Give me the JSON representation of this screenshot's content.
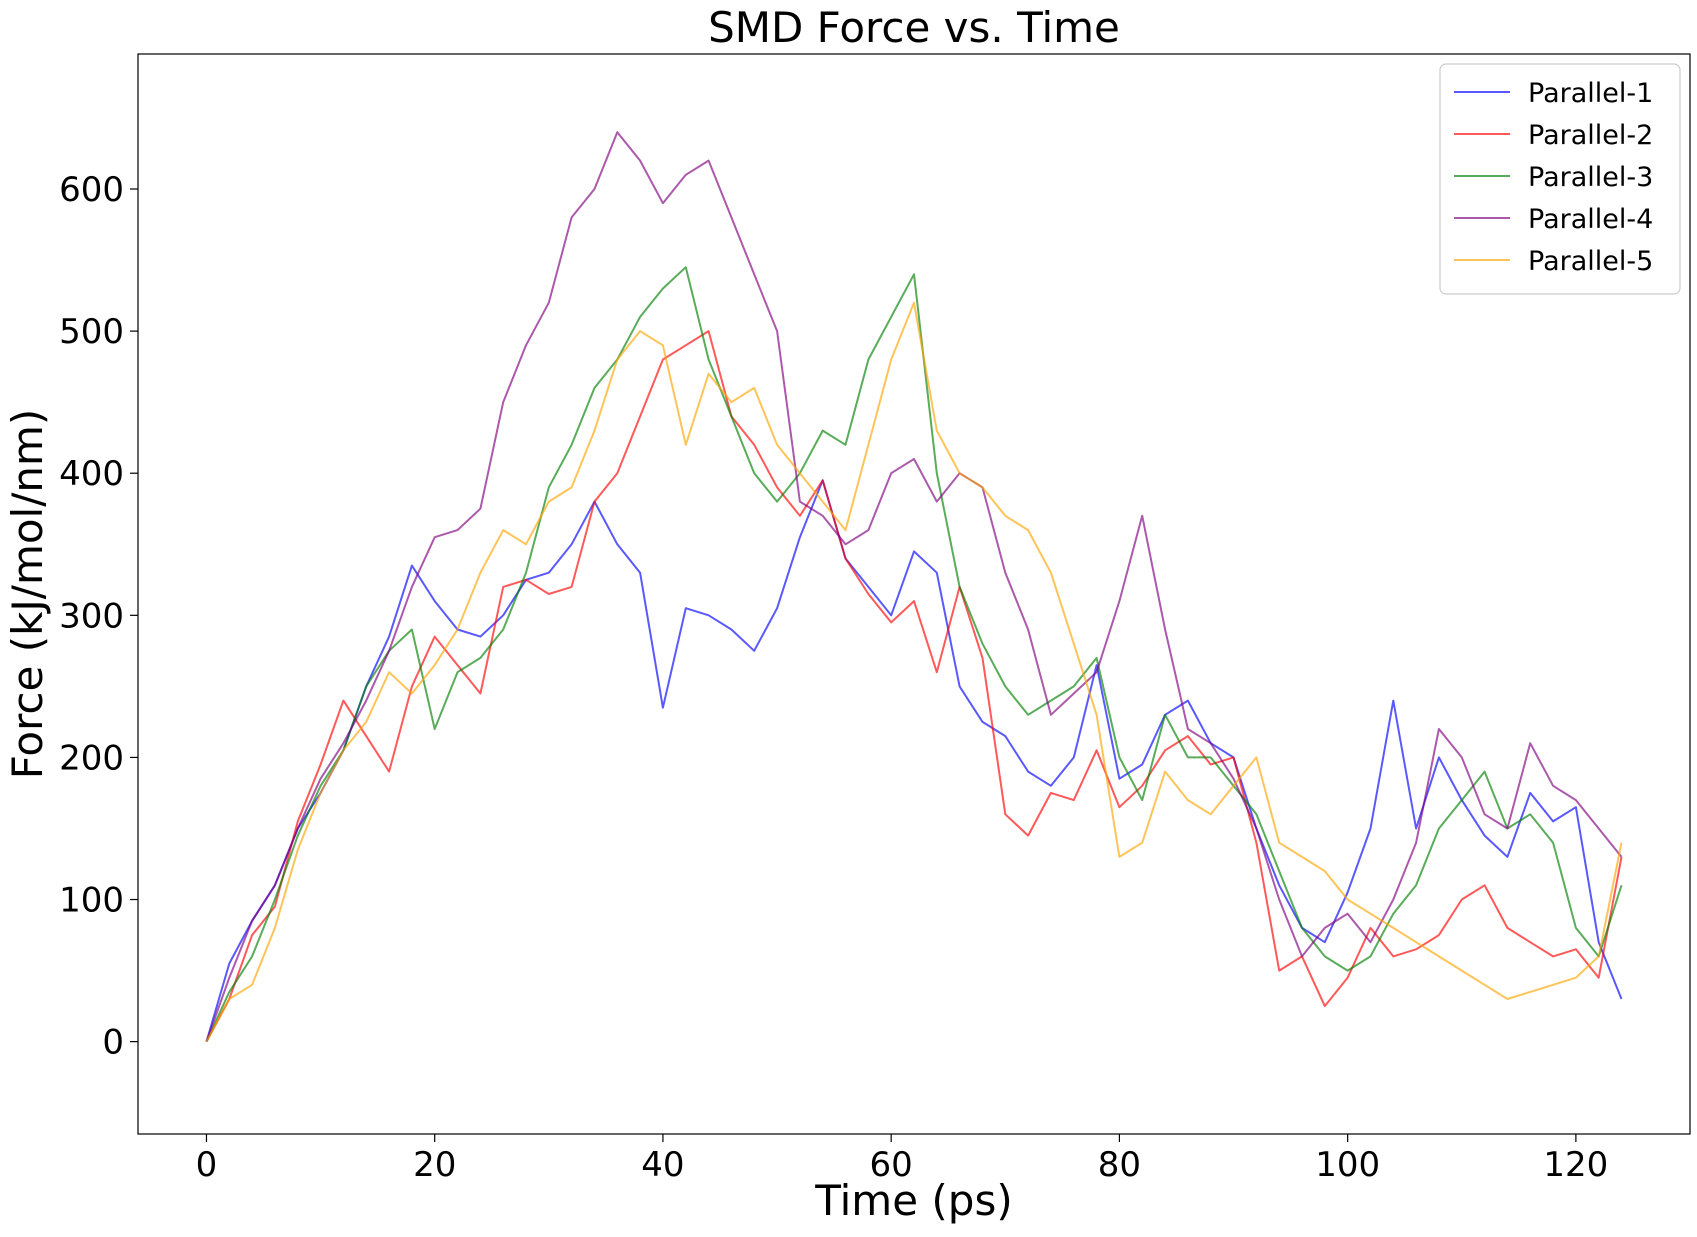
{
  "chart_data": {
    "type": "line",
    "title": "SMD Force vs. Time",
    "xlabel": "Time (ps)",
    "ylabel": "Force (kJ/mol/nm)",
    "xlim": [
      -6,
      130
    ],
    "ylim": [
      -65,
      695
    ],
    "xticks": [
      0,
      20,
      40,
      60,
      80,
      100,
      120
    ],
    "yticks": [
      0,
      100,
      200,
      300,
      400,
      500,
      600
    ],
    "grid": false,
    "legend_position": "top-right",
    "series": [
      {
        "name": "Parallel-1",
        "color": "#0000ff",
        "x": [
          0,
          2,
          4,
          6,
          8,
          10,
          12,
          14,
          16,
          18,
          20,
          22,
          24,
          26,
          28,
          30,
          32,
          34,
          36,
          38,
          40,
          42,
          44,
          46,
          48,
          50,
          52,
          54,
          56,
          58,
          60,
          62,
          64,
          66,
          68,
          70,
          72,
          74,
          76,
          78,
          80,
          82,
          84,
          86,
          88,
          90,
          92,
          94,
          96,
          98,
          100,
          102,
          104,
          106,
          108,
          110,
          112,
          114,
          116,
          118,
          120,
          122,
          124
        ],
        "y": [
          0,
          55,
          85,
          110,
          150,
          175,
          205,
          250,
          285,
          335,
          310,
          290,
          285,
          300,
          325,
          330,
          350,
          380,
          350,
          330,
          235,
          305,
          300,
          290,
          275,
          305,
          355,
          395,
          340,
          320,
          300,
          345,
          330,
          250,
          225,
          215,
          190,
          180,
          200,
          265,
          185,
          195,
          230,
          240,
          210,
          200,
          150,
          110,
          80,
          70,
          105,
          150,
          240,
          150,
          200,
          170,
          145,
          130,
          175,
          155,
          165,
          70,
          30
        ]
      },
      {
        "name": "Parallel-2",
        "color": "#ff0000",
        "x": [
          0,
          2,
          4,
          6,
          8,
          10,
          12,
          14,
          16,
          18,
          20,
          22,
          24,
          26,
          28,
          30,
          32,
          34,
          36,
          38,
          40,
          42,
          44,
          46,
          48,
          50,
          52,
          54,
          56,
          58,
          60,
          62,
          64,
          66,
          68,
          70,
          72,
          74,
          76,
          78,
          80,
          82,
          84,
          86,
          88,
          90,
          92,
          94,
          96,
          98,
          100,
          102,
          104,
          106,
          108,
          110,
          112,
          114,
          116,
          118,
          120,
          122,
          124
        ],
        "y": [
          0,
          30,
          75,
          95,
          155,
          195,
          240,
          215,
          190,
          250,
          285,
          265,
          245,
          320,
          325,
          315,
          320,
          380,
          400,
          440,
          480,
          490,
          500,
          440,
          420,
          390,
          370,
          395,
          340,
          315,
          295,
          310,
          260,
          320,
          270,
          160,
          145,
          175,
          170,
          205,
          165,
          180,
          205,
          215,
          195,
          200,
          140,
          50,
          60,
          25,
          45,
          80,
          60,
          65,
          75,
          100,
          110,
          80,
          70,
          60,
          65,
          45,
          130
        ]
      },
      {
        "name": "Parallel-3",
        "color": "#008000",
        "x": [
          0,
          2,
          4,
          6,
          8,
          10,
          12,
          14,
          16,
          18,
          20,
          22,
          24,
          26,
          28,
          30,
          32,
          34,
          36,
          38,
          40,
          42,
          44,
          46,
          48,
          50,
          52,
          54,
          56,
          58,
          60,
          62,
          64,
          66,
          68,
          70,
          72,
          74,
          76,
          78,
          80,
          82,
          84,
          86,
          88,
          90,
          92,
          94,
          96,
          98,
          100,
          102,
          104,
          106,
          108,
          110,
          112,
          114,
          116,
          118,
          120,
          122,
          124
        ],
        "y": [
          0,
          35,
          60,
          100,
          145,
          180,
          205,
          250,
          275,
          290,
          220,
          260,
          270,
          290,
          330,
          390,
          420,
          460,
          480,
          510,
          530,
          545,
          480,
          440,
          400,
          380,
          400,
          430,
          420,
          480,
          510,
          540,
          400,
          320,
          280,
          250,
          230,
          240,
          250,
          270,
          200,
          170,
          230,
          200,
          200,
          180,
          160,
          120,
          80,
          60,
          50,
          60,
          90,
          110,
          150,
          170,
          190,
          150,
          160,
          140,
          80,
          60,
          110
        ]
      },
      {
        "name": "Parallel-4",
        "color": "#800080",
        "x": [
          0,
          2,
          4,
          6,
          8,
          10,
          12,
          14,
          16,
          18,
          20,
          22,
          24,
          26,
          28,
          30,
          32,
          34,
          36,
          38,
          40,
          42,
          44,
          46,
          48,
          50,
          52,
          54,
          56,
          58,
          60,
          62,
          64,
          66,
          68,
          70,
          72,
          74,
          76,
          78,
          80,
          82,
          84,
          86,
          88,
          90,
          92,
          94,
          96,
          98,
          100,
          102,
          104,
          106,
          108,
          110,
          112,
          114,
          116,
          118,
          120,
          122,
          124
        ],
        "y": [
          0,
          45,
          85,
          110,
          150,
          185,
          210,
          240,
          275,
          320,
          355,
          360,
          375,
          450,
          490,
          520,
          580,
          600,
          640,
          620,
          590,
          610,
          620,
          580,
          540,
          500,
          380,
          370,
          350,
          360,
          400,
          410,
          380,
          400,
          390,
          330,
          290,
          230,
          245,
          260,
          310,
          370,
          290,
          220,
          210,
          185,
          150,
          100,
          60,
          80,
          90,
          70,
          100,
          140,
          220,
          200,
          160,
          150,
          210,
          180,
          170,
          150,
          130
        ]
      },
      {
        "name": "Parallel-5",
        "color": "#ffa500",
        "x": [
          0,
          2,
          4,
          6,
          8,
          10,
          12,
          14,
          16,
          18,
          20,
          22,
          24,
          26,
          28,
          30,
          32,
          34,
          36,
          38,
          40,
          42,
          44,
          46,
          48,
          50,
          52,
          54,
          56,
          58,
          60,
          62,
          64,
          66,
          68,
          70,
          72,
          74,
          76,
          78,
          80,
          82,
          84,
          86,
          88,
          90,
          92,
          94,
          96,
          98,
          100,
          102,
          104,
          106,
          108,
          110,
          112,
          114,
          116,
          118,
          120,
          122,
          124
        ],
        "y": [
          0,
          30,
          40,
          80,
          135,
          175,
          205,
          225,
          260,
          245,
          265,
          290,
          330,
          360,
          350,
          380,
          390,
          430,
          480,
          500,
          490,
          420,
          470,
          450,
          460,
          420,
          400,
          380,
          360,
          420,
          480,
          520,
          430,
          400,
          390,
          370,
          360,
          330,
          280,
          230,
          130,
          140,
          190,
          170,
          160,
          180,
          200,
          140,
          130,
          120,
          100,
          90,
          80,
          70,
          60,
          50,
          40,
          30,
          35,
          40,
          45,
          60,
          140
        ]
      }
    ]
  }
}
